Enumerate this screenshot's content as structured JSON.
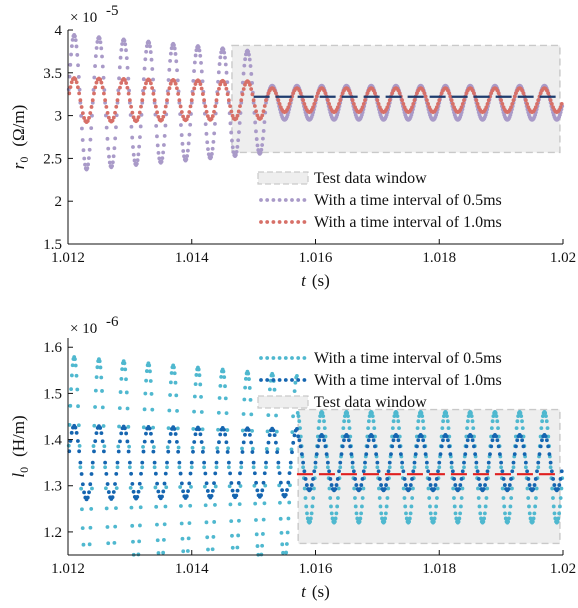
{
  "chart_data": [
    {
      "type": "scatter",
      "xlabel_var": "t",
      "xlabel_unit": "(s)",
      "ylabel_var": "r",
      "ylabel_sub": "0",
      "ylabel_unit": "(Ω/m)",
      "y_multiplier_base": "× 10",
      "y_multiplier_exp": "-5",
      "xlim": [
        1.012,
        1.02
      ],
      "ylim": [
        1.5,
        4
      ],
      "x_ticks": [
        1.012,
        1.014,
        1.016,
        1.018,
        1.02
      ],
      "x_tick_labels": [
        "1.012",
        "1.014",
        "1.016",
        "1.018",
        "1.02"
      ],
      "y_ticks": [
        1.5,
        2,
        2.5,
        3,
        3.5,
        4
      ],
      "y_tick_labels": [
        "1.5",
        "2",
        "2.5",
        "3",
        "3.5",
        "4"
      ],
      "test_window": {
        "x": [
          1.01465,
          1.01995
        ],
        "y": [
          2.57,
          3.82
        ],
        "label": "Test data window"
      },
      "series": [
        {
          "name": "With a time interval of 0.5ms",
          "color": "#a99ac8",
          "step_s": 1.25e-05,
          "oscillation": {
            "period_s": 0.0004,
            "center": 3.15,
            "amplitude_start": 0.8,
            "amplitude_end": 0.2,
            "settle_time_s": 1.0152
          }
        },
        {
          "name": "With a time interval of 1.0ms",
          "color": "#d77068",
          "step_s": 2e-05,
          "oscillation": {
            "period_s": 0.0004,
            "center": 3.18,
            "amplitude_start": 0.26,
            "amplitude_end": 0.14,
            "settle_time_s": 1.0152
          }
        }
      ],
      "reference_line": {
        "x": [
          1.015,
          1.0199
        ],
        "y": 3.22,
        "color": "#1f3c6e"
      },
      "legend_order": [
        "window",
        0,
        1
      ],
      "legend_position": "lower-right"
    },
    {
      "type": "scatter",
      "xlabel_var": "t",
      "xlabel_unit": "(s)",
      "ylabel_var": "l",
      "ylabel_sub": "0",
      "ylabel_unit": "(H/m)",
      "y_multiplier_base": "× 10",
      "y_multiplier_exp": "-6",
      "xlim": [
        1.012,
        1.02
      ],
      "ylim": [
        1.15,
        1.62
      ],
      "x_ticks": [
        1.012,
        1.014,
        1.016,
        1.018,
        1.02
      ],
      "x_tick_labels": [
        "1.012",
        "1.014",
        "1.016",
        "1.018",
        "1.02"
      ],
      "y_ticks": [
        1.2,
        1.3,
        1.4,
        1.5,
        1.6
      ],
      "y_tick_labels": [
        "1.2",
        "1.3",
        "1.4",
        "1.5",
        "1.6"
      ],
      "test_window": {
        "x": [
          1.01572,
          1.01995
        ],
        "y": [
          1.175,
          1.465
        ],
        "label": "Test data window"
      },
      "series": [
        {
          "name": "With a time interval of 0.5ms",
          "color": "#4fb8cf",
          "step_s": 1.25e-05,
          "oscillation": {
            "period_s": 0.0004,
            "center": 1.34,
            "amplitude_start": 0.24,
            "amplitude_end": 0.12,
            "settle_time_s": 1.0157
          }
        },
        {
          "name": "With a time interval of 1.0ms",
          "color": "#1565b0",
          "step_s": 2e-05,
          "oscillation": {
            "period_s": 0.0004,
            "center": 1.35,
            "amplitude_start": 0.08,
            "amplitude_end": 0.06,
            "settle_time_s": 1.0157
          }
        }
      ],
      "reference_line": {
        "x": [
          1.0157,
          1.0199
        ],
        "y": 1.325,
        "color": "#e02020"
      },
      "legend_order": [
        0,
        1,
        "window"
      ],
      "legend_position": "top-right"
    }
  ]
}
